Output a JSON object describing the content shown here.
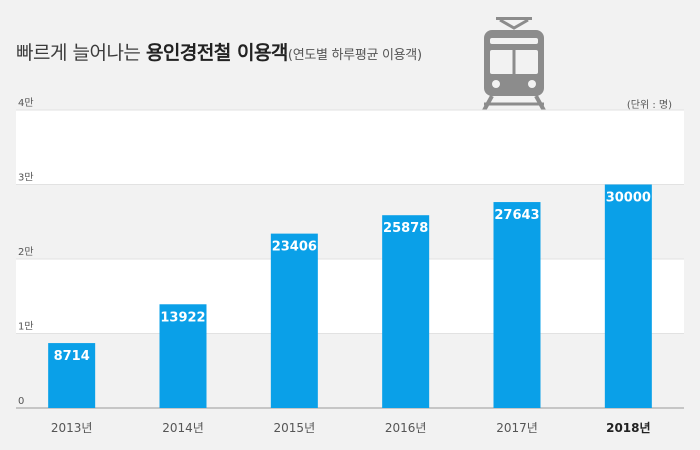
{
  "header": {
    "title_main": "빠르게 늘어나는 ",
    "title_bold": "용인경전철 이용객",
    "title_sub": "(연도별 하루평균 이용객)",
    "unit": "(단위 : 명)"
  },
  "icons": {
    "train": "train-icon"
  },
  "colors": {
    "bar": "#0aa0e8",
    "grid_band": "#ffffff",
    "background": "#f2f2f2",
    "icon": "#8c8c8c"
  },
  "chart_data": {
    "type": "bar",
    "categories": [
      "2013년",
      "2014년",
      "2015년",
      "2016년",
      "2017년",
      "2018년"
    ],
    "values": [
      8714,
      13922,
      23406,
      25878,
      27643,
      30000
    ],
    "value_labels": [
      "8714",
      "13922",
      "23406",
      "25878",
      "27643",
      "30000"
    ],
    "y_ticks": [
      0,
      10000,
      20000,
      30000,
      40000
    ],
    "y_tick_labels": [
      "0",
      "1만",
      "2만",
      "3만",
      "4만"
    ],
    "ylim": [
      0,
      40000
    ],
    "highlight_category": "2018년",
    "title": "빠르게 늘어나는 용인경전철 이용객",
    "xlabel": "",
    "ylabel": "",
    "grid": true
  }
}
